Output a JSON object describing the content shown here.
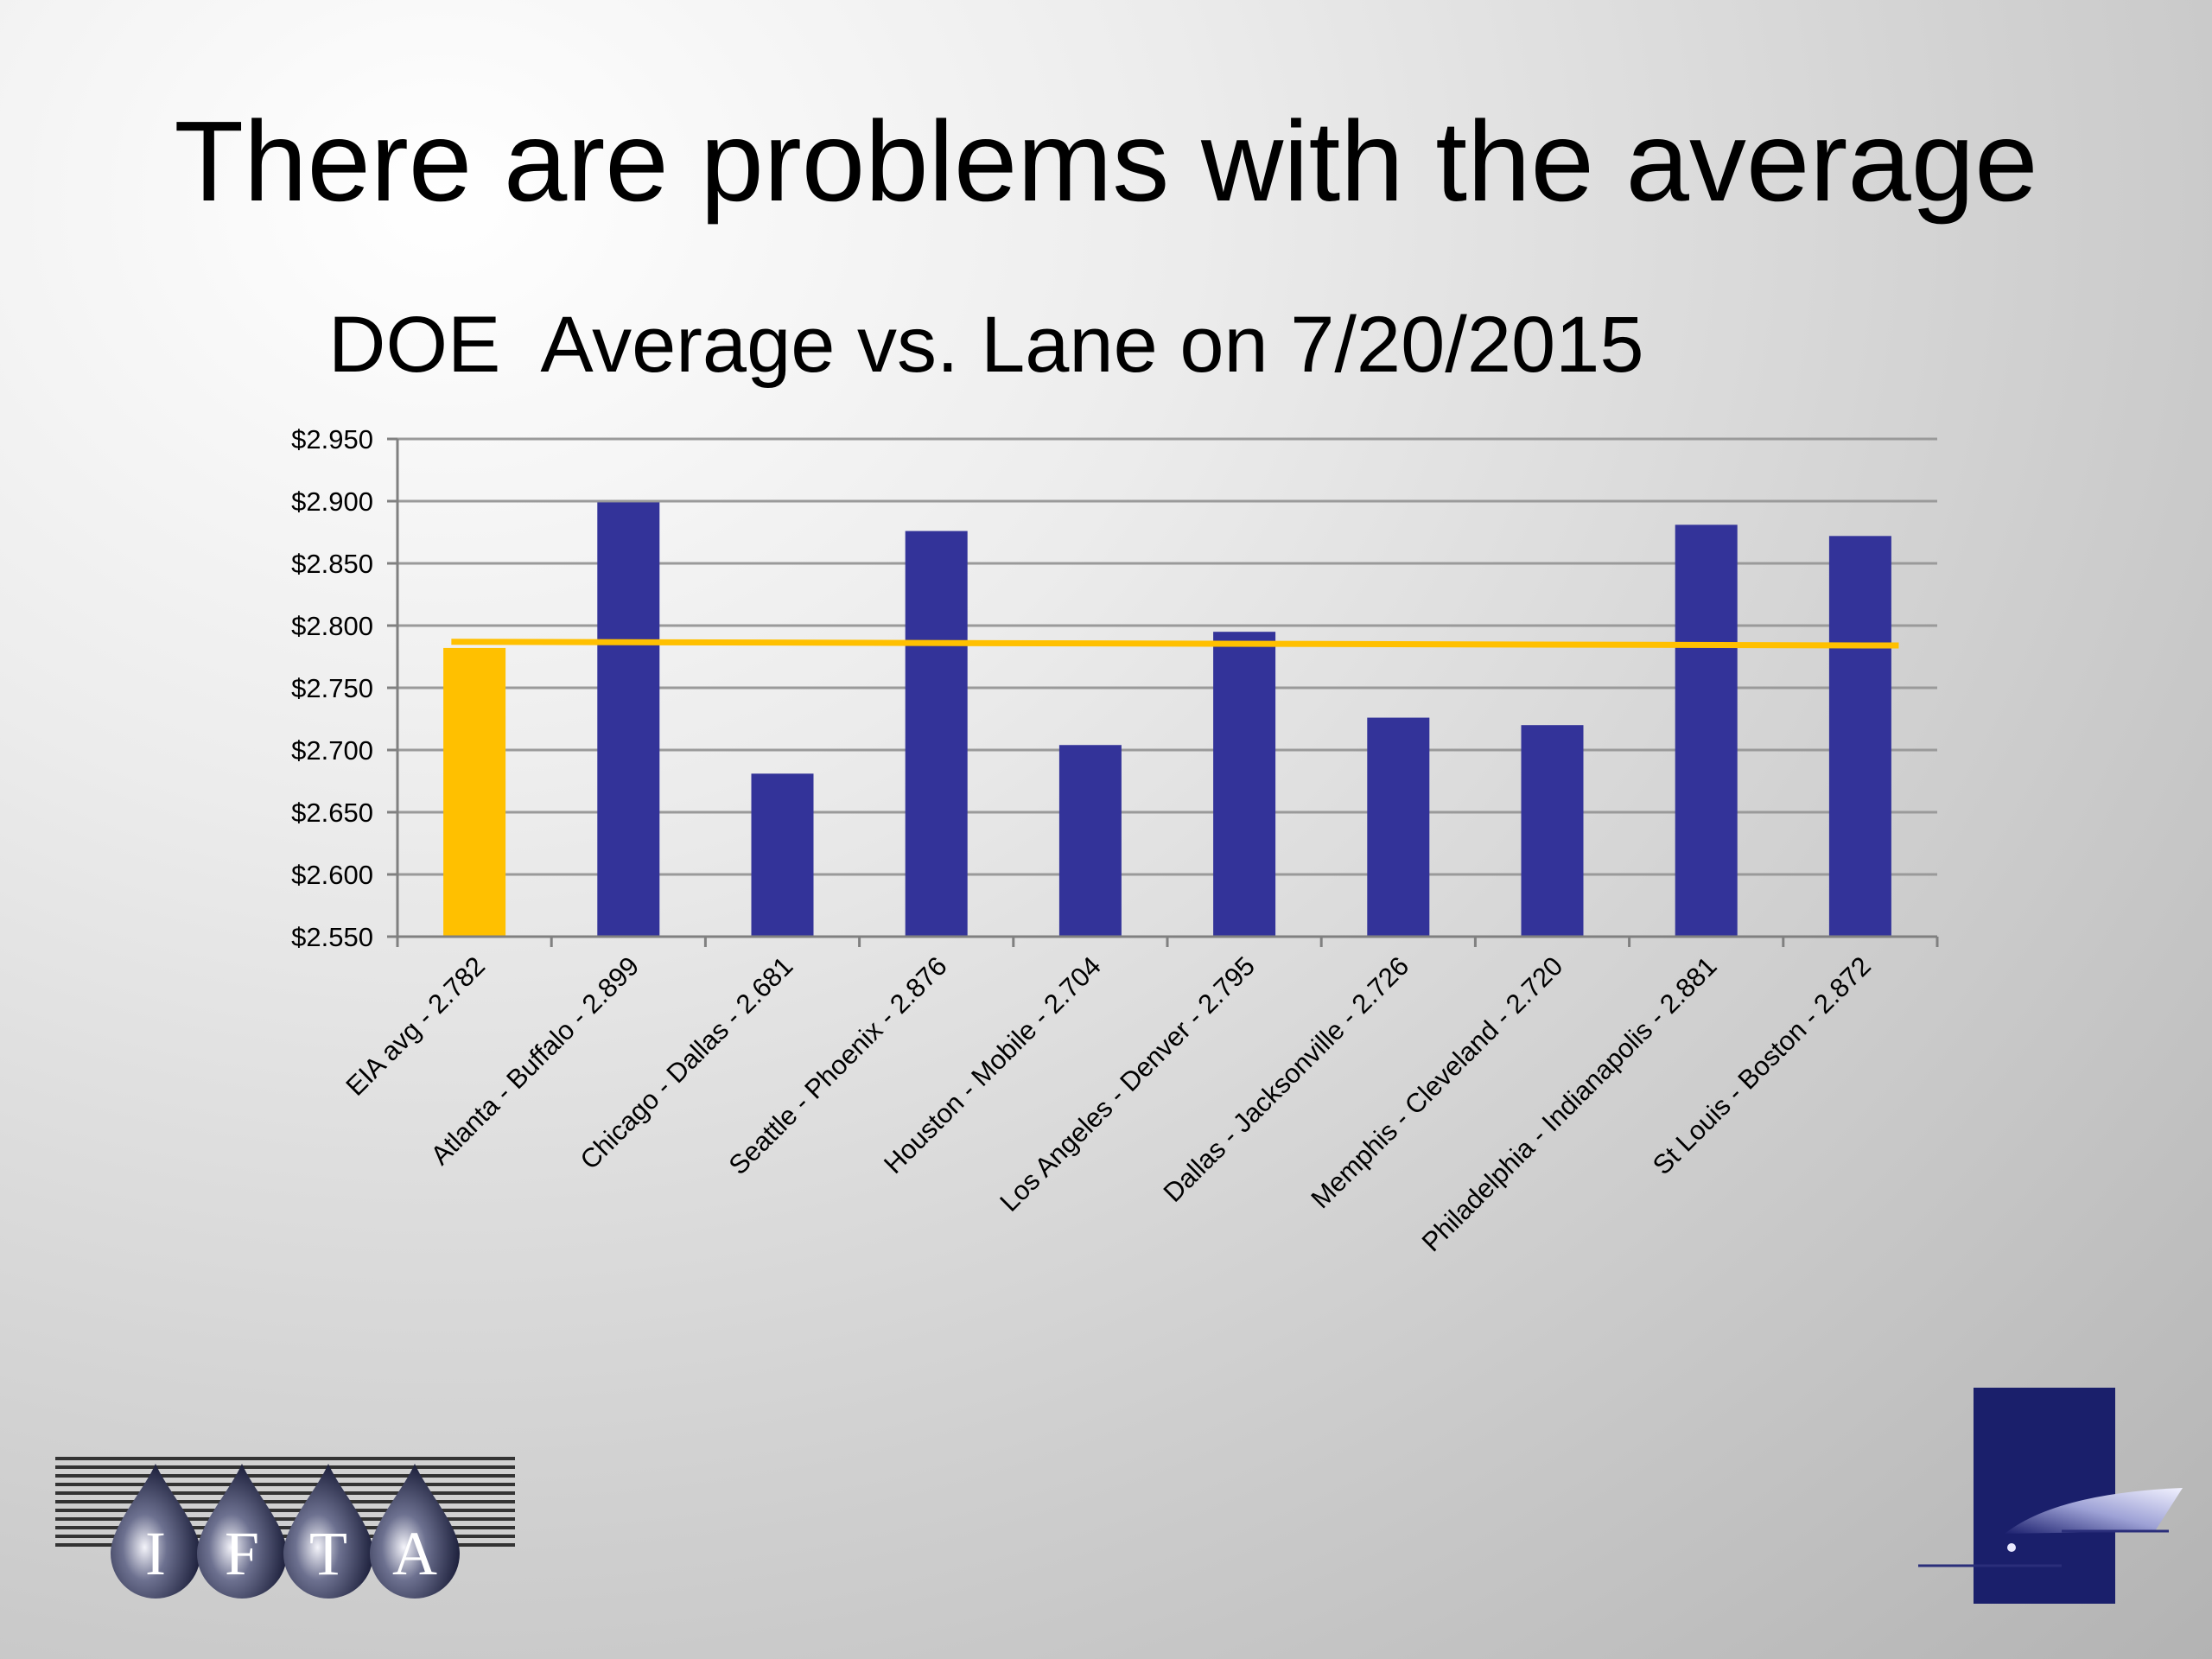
{
  "slide": {
    "title": "There are problems with the average"
  },
  "colors": {
    "eia_bar": "#FFC000",
    "lane_bar": "#333399",
    "average_line": "#FFC000",
    "gridline": "#9a9a9a",
    "axis": "#808080"
  },
  "chart_data": {
    "type": "bar",
    "title": "DOE  Average vs. Lane on 7/20/2015",
    "xlabel": "",
    "ylabel": "",
    "ylim": [
      2.55,
      2.95
    ],
    "y_tick_labels": [
      "$2.550",
      "$2.600",
      "$2.650",
      "$2.700",
      "$2.750",
      "$2.800",
      "$2.850",
      "$2.900",
      "$2.950"
    ],
    "y_ticks": [
      2.55,
      2.6,
      2.65,
      2.7,
      2.75,
      2.8,
      2.85,
      2.9,
      2.95
    ],
    "grid": true,
    "legend": "none",
    "categories": [
      "EIA avg - 2.782",
      "Atlanta - Buffalo - 2.899",
      "Chicago - Dallas - 2.681",
      "Seattle  - Phoenix - 2.876",
      "Houston - Mobile - 2.704",
      "Los Angeles - Denver - 2.795",
      "Dallas - Jacksonville - 2.726",
      "Memphis - Cleveland - 2.720",
      "Philadelphia - Indianapolis - 2.881",
      "St Louis - Boston - 2.872"
    ],
    "values": [
      2.782,
      2.899,
      2.681,
      2.876,
      2.704,
      2.795,
      2.726,
      2.72,
      2.881,
      2.872
    ],
    "highlight_index": 0,
    "reference_line": {
      "value_start": 2.787,
      "value_end": 2.784
    }
  },
  "logos": {
    "ifta_letters": [
      "I",
      "F",
      "T",
      "A"
    ],
    "ifta_icon": "ifta-logo-icon",
    "corner_icon": "corner-emblem-icon"
  }
}
